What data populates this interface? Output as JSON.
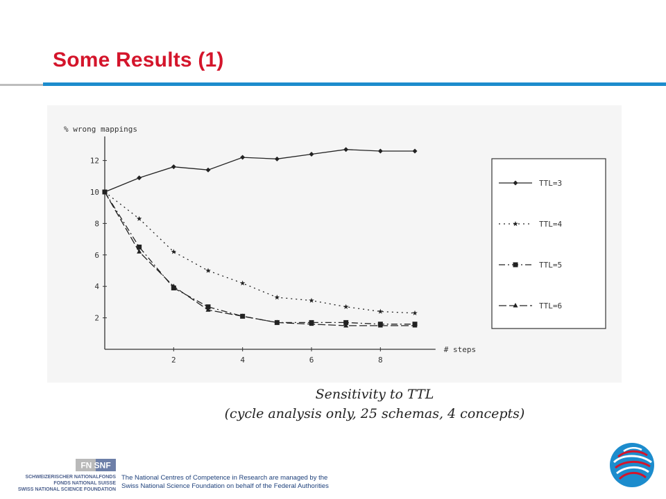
{
  "slide": {
    "title": "Some Results (1)"
  },
  "caption": {
    "line1": "Sensitivity to TTL",
    "line2": "(cycle analysis only, 25 schemas, 4 concepts)"
  },
  "footer": {
    "fnsnf_label": "FN SNF",
    "funder_line1": "SCHWEIZERISCHER NATIONALFONDS",
    "funder_line2": "FONDS NATIONAL SUISSE",
    "funder_line3": "SWISS NATIONAL SCIENCE FOUNDATION",
    "text_line1": "The National Centres of Competence in Research are managed by the",
    "text_line2": "Swiss National Science Foundation on behalf of the Federal Authorities"
  },
  "colors": {
    "title": "#d4152b",
    "rule": "#1c8ccd",
    "footer_text": "#1c3f7a"
  },
  "chart_data": {
    "type": "line",
    "ylabel": "% wrong mappings",
    "xlabel": "# steps",
    "x": [
      0,
      1,
      2,
      3,
      4,
      5,
      6,
      7,
      8,
      9
    ],
    "xticks": [
      2,
      4,
      6,
      8
    ],
    "yticks": [
      2,
      4,
      6,
      8,
      10,
      12
    ],
    "xlim": [
      0,
      9.6
    ],
    "ylim": [
      0,
      13
    ],
    "grid": false,
    "legend_position": "right",
    "series": [
      {
        "name": "TTL=3",
        "marker": "diamond",
        "dash": "solid",
        "values": [
          10,
          10.9,
          11.6,
          11.4,
          12.2,
          12.1,
          12.4,
          12.7,
          12.6,
          12.6
        ]
      },
      {
        "name": "TTL=4",
        "marker": "star",
        "dash": "dotted",
        "values": [
          10,
          8.3,
          6.2,
          5.0,
          4.2,
          3.3,
          3.1,
          2.7,
          2.4,
          2.3
        ]
      },
      {
        "name": "TTL=5",
        "marker": "square",
        "dash": "dashdot",
        "values": [
          10,
          6.5,
          3.9,
          2.7,
          2.1,
          1.7,
          1.7,
          1.7,
          1.6,
          1.6
        ]
      },
      {
        "name": "TTL=6",
        "marker": "triangle",
        "dash": "longdash",
        "values": [
          10,
          6.2,
          4.0,
          2.5,
          2.1,
          1.7,
          1.6,
          1.5,
          1.5,
          1.5
        ]
      }
    ]
  }
}
